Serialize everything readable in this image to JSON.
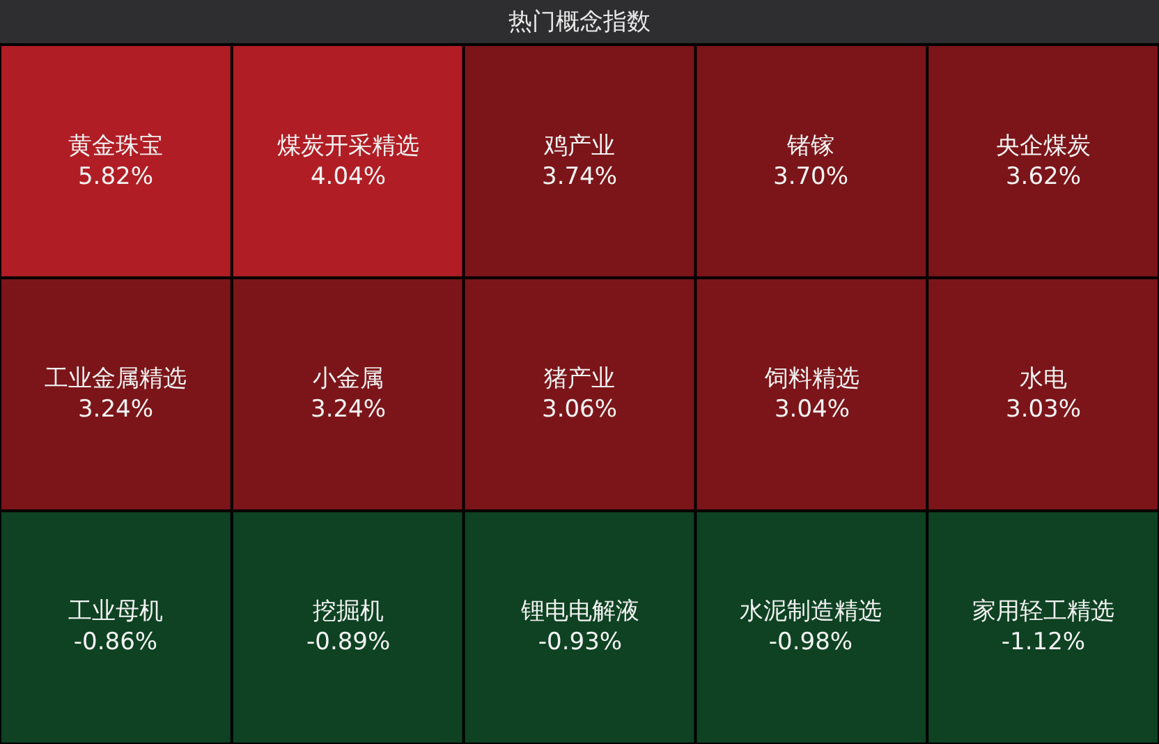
{
  "chart_data": {
    "type": "other",
    "title": "热门概念指数",
    "categories": [
      "黄金珠宝",
      "煤炭开采精选",
      "鸡产业",
      "锗镓",
      "央企煤炭",
      "工业金属精选",
      "小金属",
      "猪产业",
      "饲料精选",
      "水电",
      "工业母机",
      "挖掘机",
      "锂电电解液",
      "水泥制造精选",
      "家用轻工精选"
    ],
    "values": [
      5.82,
      4.04,
      3.74,
      3.7,
      3.62,
      3.24,
      3.24,
      3.06,
      3.04,
      3.03,
      -0.86,
      -0.89,
      -0.93,
      -0.98,
      -1.12
    ],
    "value_labels": [
      "5.82%",
      "4.04%",
      "3.74%",
      "3.70%",
      "3.62%",
      "3.24%",
      "3.24%",
      "3.06%",
      "3.04%",
      "3.03%",
      "-0.86%",
      "-0.89%",
      "-0.93%",
      "-0.98%",
      "-1.12%"
    ],
    "colors": [
      "#b01d24",
      "#b01d24",
      "#7b1519",
      "#7b1519",
      "#7b1519",
      "#7b1519",
      "#7b1519",
      "#7b1519",
      "#7b1519",
      "#7b1519",
      "#0e4222",
      "#0e4222",
      "#0e4222",
      "#0e4222",
      "#0e4222"
    ]
  }
}
